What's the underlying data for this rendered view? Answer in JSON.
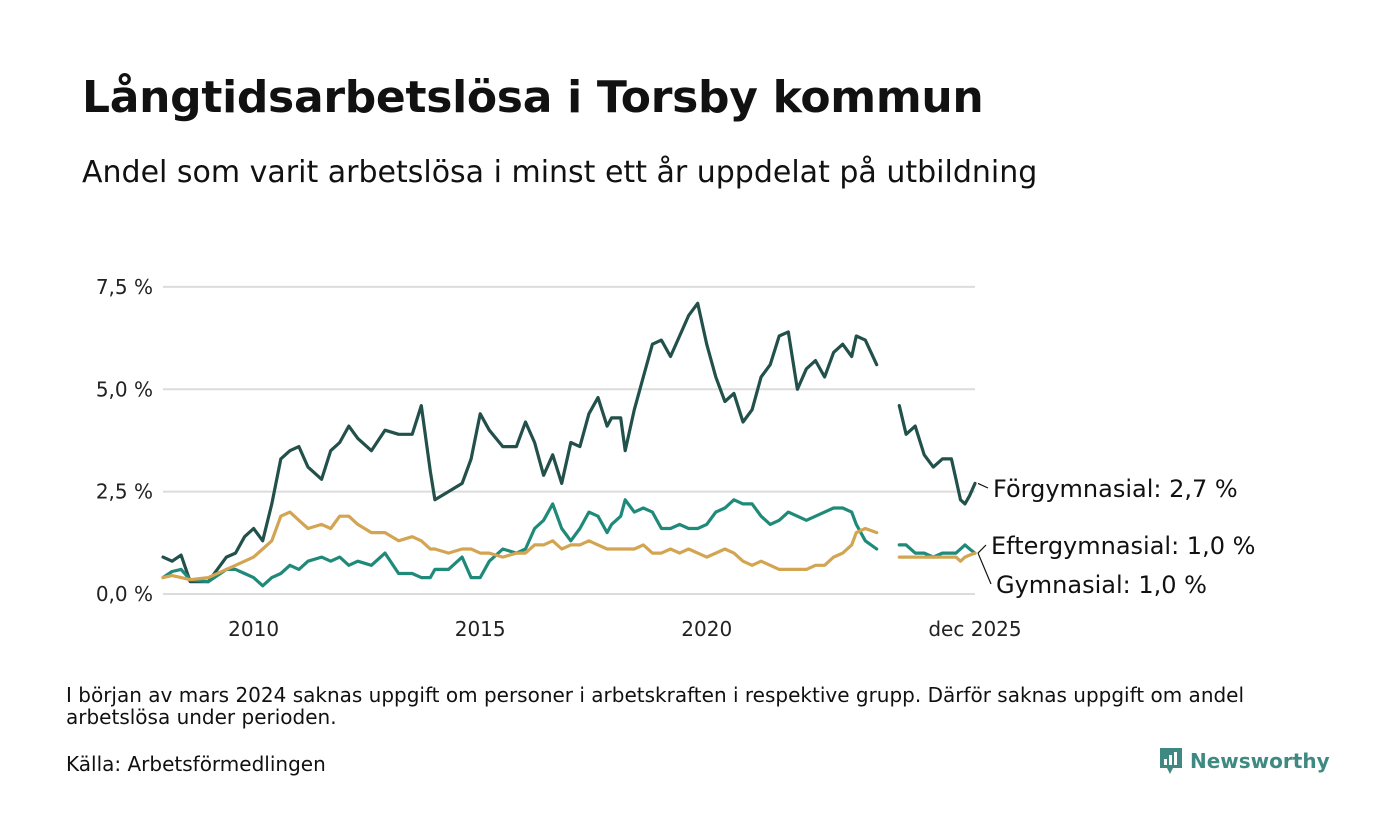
{
  "title": "Långtidsarbetslösa i Torsby kommun",
  "subtitle": "Andel som varit arbetslösa i minst ett år uppdelat på utbildning",
  "note": "I början av mars 2024 saknas uppgift om personer i arbetskraften i respektive grupp. Därför saknas uppgift om andel arbetslösa under perioden.",
  "source": "Källa: Arbetsförmedlingen",
  "brand": "Newsworthy",
  "chart_data": {
    "type": "line",
    "title": "Långtidsarbetslösa i Torsby kommun",
    "xlabel": "",
    "ylabel": "",
    "xlim": [
      2008.0,
      2025.92
    ],
    "ylim": [
      0,
      9.5
    ],
    "yticks": [
      0,
      2.5,
      5.0,
      7.5
    ],
    "ytick_labels": [
      "0,0 %",
      "2,5 %",
      "5,0 %",
      "7,5 %"
    ],
    "xticks": [
      2010,
      2015,
      2020,
      2025.92
    ],
    "xtick_labels": [
      "2010",
      "2015",
      "2020",
      "dec 2025"
    ],
    "gap_years": [
      2023.75,
      2024.25
    ],
    "series": [
      {
        "name": "Förgymnasial",
        "label": "Förgymnasial: 2,7 %",
        "color": "#22504a",
        "points": [
          [
            2008.0,
            0.9
          ],
          [
            2008.2,
            0.8
          ],
          [
            2008.4,
            0.95
          ],
          [
            2008.6,
            0.3
          ],
          [
            2009.0,
            0.3
          ],
          [
            2009.4,
            0.9
          ],
          [
            2009.6,
            1.0
          ],
          [
            2009.8,
            1.4
          ],
          [
            2010.0,
            1.6
          ],
          [
            2010.2,
            1.3
          ],
          [
            2010.4,
            2.2
          ],
          [
            2010.6,
            3.3
          ],
          [
            2010.8,
            3.5
          ],
          [
            2011.0,
            3.6
          ],
          [
            2011.2,
            3.1
          ],
          [
            2011.5,
            2.8
          ],
          [
            2011.7,
            3.5
          ],
          [
            2011.9,
            3.7
          ],
          [
            2012.1,
            4.1
          ],
          [
            2012.3,
            3.8
          ],
          [
            2012.6,
            3.5
          ],
          [
            2012.9,
            4.0
          ],
          [
            2013.2,
            3.9
          ],
          [
            2013.5,
            3.9
          ],
          [
            2013.7,
            4.6
          ],
          [
            2013.9,
            3.0
          ],
          [
            2014.0,
            2.3
          ],
          [
            2014.3,
            2.5
          ],
          [
            2014.6,
            2.7
          ],
          [
            2014.8,
            3.3
          ],
          [
            2015.0,
            4.4
          ],
          [
            2015.2,
            4.0
          ],
          [
            2015.5,
            3.6
          ],
          [
            2015.8,
            3.6
          ],
          [
            2016.0,
            4.2
          ],
          [
            2016.2,
            3.7
          ],
          [
            2016.4,
            2.9
          ],
          [
            2016.6,
            3.4
          ],
          [
            2016.8,
            2.7
          ],
          [
            2017.0,
            3.7
          ],
          [
            2017.2,
            3.6
          ],
          [
            2017.4,
            4.4
          ],
          [
            2017.6,
            4.8
          ],
          [
            2017.8,
            4.1
          ],
          [
            2017.9,
            4.3
          ],
          [
            2018.1,
            4.3
          ],
          [
            2018.2,
            3.5
          ],
          [
            2018.4,
            4.5
          ],
          [
            2018.6,
            5.3
          ],
          [
            2018.8,
            6.1
          ],
          [
            2019.0,
            6.2
          ],
          [
            2019.2,
            5.8
          ],
          [
            2019.4,
            6.3
          ],
          [
            2019.6,
            6.8
          ],
          [
            2019.8,
            7.1
          ],
          [
            2020.0,
            6.1
          ],
          [
            2020.2,
            5.3
          ],
          [
            2020.4,
            4.7
          ],
          [
            2020.6,
            4.9
          ],
          [
            2020.8,
            4.2
          ],
          [
            2021.0,
            4.5
          ],
          [
            2021.2,
            5.3
          ],
          [
            2021.4,
            5.6
          ],
          [
            2021.6,
            6.3
          ],
          [
            2021.8,
            6.4
          ],
          [
            2022.0,
            5.0
          ],
          [
            2022.2,
            5.5
          ],
          [
            2022.4,
            5.7
          ],
          [
            2022.6,
            5.3
          ],
          [
            2022.8,
            5.9
          ],
          [
            2023.0,
            6.1
          ],
          [
            2023.2,
            5.8
          ],
          [
            2023.3,
            6.3
          ],
          [
            2023.5,
            6.2
          ],
          [
            2023.75,
            5.6
          ],
          [
            2024.25,
            4.6
          ],
          [
            2024.4,
            3.9
          ],
          [
            2024.6,
            4.1
          ],
          [
            2024.8,
            3.4
          ],
          [
            2025.0,
            3.1
          ],
          [
            2025.2,
            3.3
          ],
          [
            2025.4,
            3.3
          ],
          [
            2025.5,
            2.8
          ],
          [
            2025.6,
            2.3
          ],
          [
            2025.7,
            2.2
          ],
          [
            2025.8,
            2.4
          ],
          [
            2025.92,
            2.7
          ]
        ]
      },
      {
        "name": "Eftergymnasial",
        "label": "Eftergymnasial: 1,0 %",
        "color": "#1f8a7a",
        "points": [
          [
            2008.0,
            0.4
          ],
          [
            2008.2,
            0.55
          ],
          [
            2008.4,
            0.6
          ],
          [
            2008.6,
            0.35
          ],
          [
            2009.0,
            0.3
          ],
          [
            2009.4,
            0.6
          ],
          [
            2009.6,
            0.6
          ],
          [
            2009.8,
            0.5
          ],
          [
            2010.0,
            0.4
          ],
          [
            2010.2,
            0.2
          ],
          [
            2010.4,
            0.4
          ],
          [
            2010.6,
            0.5
          ],
          [
            2010.8,
            0.7
          ],
          [
            2011.0,
            0.6
          ],
          [
            2011.2,
            0.8
          ],
          [
            2011.5,
            0.9
          ],
          [
            2011.7,
            0.8
          ],
          [
            2011.9,
            0.9
          ],
          [
            2012.1,
            0.7
          ],
          [
            2012.3,
            0.8
          ],
          [
            2012.6,
            0.7
          ],
          [
            2012.9,
            1.0
          ],
          [
            2013.2,
            0.5
          ],
          [
            2013.5,
            0.5
          ],
          [
            2013.7,
            0.4
          ],
          [
            2013.9,
            0.4
          ],
          [
            2014.0,
            0.6
          ],
          [
            2014.3,
            0.6
          ],
          [
            2014.6,
            0.9
          ],
          [
            2014.8,
            0.4
          ],
          [
            2015.0,
            0.4
          ],
          [
            2015.2,
            0.8
          ],
          [
            2015.5,
            1.1
          ],
          [
            2015.8,
            1.0
          ],
          [
            2016.0,
            1.1
          ],
          [
            2016.2,
            1.6
          ],
          [
            2016.4,
            1.8
          ],
          [
            2016.6,
            2.2
          ],
          [
            2016.8,
            1.6
          ],
          [
            2017.0,
            1.3
          ],
          [
            2017.2,
            1.6
          ],
          [
            2017.4,
            2.0
          ],
          [
            2017.6,
            1.9
          ],
          [
            2017.8,
            1.5
          ],
          [
            2017.9,
            1.7
          ],
          [
            2018.1,
            1.9
          ],
          [
            2018.2,
            2.3
          ],
          [
            2018.4,
            2.0
          ],
          [
            2018.6,
            2.1
          ],
          [
            2018.8,
            2.0
          ],
          [
            2019.0,
            1.6
          ],
          [
            2019.2,
            1.6
          ],
          [
            2019.4,
            1.7
          ],
          [
            2019.6,
            1.6
          ],
          [
            2019.8,
            1.6
          ],
          [
            2020.0,
            1.7
          ],
          [
            2020.2,
            2.0
          ],
          [
            2020.4,
            2.1
          ],
          [
            2020.6,
            2.3
          ],
          [
            2020.8,
            2.2
          ],
          [
            2021.0,
            2.2
          ],
          [
            2021.2,
            1.9
          ],
          [
            2021.4,
            1.7
          ],
          [
            2021.6,
            1.8
          ],
          [
            2021.8,
            2.0
          ],
          [
            2022.0,
            1.9
          ],
          [
            2022.2,
            1.8
          ],
          [
            2022.4,
            1.9
          ],
          [
            2022.6,
            2.0
          ],
          [
            2022.8,
            2.1
          ],
          [
            2023.0,
            2.1
          ],
          [
            2023.2,
            2.0
          ],
          [
            2023.3,
            1.7
          ],
          [
            2023.5,
            1.3
          ],
          [
            2023.75,
            1.1
          ],
          [
            2024.25,
            1.2
          ],
          [
            2024.4,
            1.2
          ],
          [
            2024.6,
            1.0
          ],
          [
            2024.8,
            1.0
          ],
          [
            2025.0,
            0.9
          ],
          [
            2025.2,
            1.0
          ],
          [
            2025.4,
            1.0
          ],
          [
            2025.5,
            1.0
          ],
          [
            2025.6,
            1.1
          ],
          [
            2025.7,
            1.2
          ],
          [
            2025.8,
            1.1
          ],
          [
            2025.92,
            1.0
          ]
        ]
      },
      {
        "name": "Gymnasial",
        "label": "Gymnasial: 1,0 %",
        "color": "#d3a552",
        "points": [
          [
            2008.0,
            0.4
          ],
          [
            2008.2,
            0.45
          ],
          [
            2008.4,
            0.4
          ],
          [
            2008.6,
            0.35
          ],
          [
            2009.0,
            0.4
          ],
          [
            2009.4,
            0.6
          ],
          [
            2009.6,
            0.7
          ],
          [
            2009.8,
            0.8
          ],
          [
            2010.0,
            0.9
          ],
          [
            2010.2,
            1.1
          ],
          [
            2010.4,
            1.3
          ],
          [
            2010.6,
            1.9
          ],
          [
            2010.8,
            2.0
          ],
          [
            2011.0,
            1.8
          ],
          [
            2011.2,
            1.6
          ],
          [
            2011.5,
            1.7
          ],
          [
            2011.7,
            1.6
          ],
          [
            2011.9,
            1.9
          ],
          [
            2012.1,
            1.9
          ],
          [
            2012.3,
            1.7
          ],
          [
            2012.6,
            1.5
          ],
          [
            2012.9,
            1.5
          ],
          [
            2013.2,
            1.3
          ],
          [
            2013.5,
            1.4
          ],
          [
            2013.7,
            1.3
          ],
          [
            2013.9,
            1.1
          ],
          [
            2014.0,
            1.1
          ],
          [
            2014.3,
            1.0
          ],
          [
            2014.6,
            1.1
          ],
          [
            2014.8,
            1.1
          ],
          [
            2015.0,
            1.0
          ],
          [
            2015.2,
            1.0
          ],
          [
            2015.5,
            0.9
          ],
          [
            2015.8,
            1.0
          ],
          [
            2016.0,
            1.0
          ],
          [
            2016.2,
            1.2
          ],
          [
            2016.4,
            1.2
          ],
          [
            2016.6,
            1.3
          ],
          [
            2016.8,
            1.1
          ],
          [
            2017.0,
            1.2
          ],
          [
            2017.2,
            1.2
          ],
          [
            2017.4,
            1.3
          ],
          [
            2017.6,
            1.2
          ],
          [
            2017.8,
            1.1
          ],
          [
            2017.9,
            1.1
          ],
          [
            2018.1,
            1.1
          ],
          [
            2018.2,
            1.1
          ],
          [
            2018.4,
            1.1
          ],
          [
            2018.6,
            1.2
          ],
          [
            2018.8,
            1.0
          ],
          [
            2019.0,
            1.0
          ],
          [
            2019.2,
            1.1
          ],
          [
            2019.4,
            1.0
          ],
          [
            2019.6,
            1.1
          ],
          [
            2019.8,
            1.0
          ],
          [
            2020.0,
            0.9
          ],
          [
            2020.2,
            1.0
          ],
          [
            2020.4,
            1.1
          ],
          [
            2020.6,
            1.0
          ],
          [
            2020.8,
            0.8
          ],
          [
            2021.0,
            0.7
          ],
          [
            2021.2,
            0.8
          ],
          [
            2021.4,
            0.7
          ],
          [
            2021.6,
            0.6
          ],
          [
            2021.8,
            0.6
          ],
          [
            2022.0,
            0.6
          ],
          [
            2022.2,
            0.6
          ],
          [
            2022.4,
            0.7
          ],
          [
            2022.6,
            0.7
          ],
          [
            2022.8,
            0.9
          ],
          [
            2023.0,
            1.0
          ],
          [
            2023.2,
            1.2
          ],
          [
            2023.3,
            1.5
          ],
          [
            2023.5,
            1.6
          ],
          [
            2023.75,
            1.5
          ],
          [
            2024.25,
            0.9
          ],
          [
            2024.4,
            0.9
          ],
          [
            2024.6,
            0.9
          ],
          [
            2024.8,
            0.9
          ],
          [
            2025.0,
            0.9
          ],
          [
            2025.2,
            0.9
          ],
          [
            2025.4,
            0.9
          ],
          [
            2025.5,
            0.9
          ],
          [
            2025.6,
            0.8
          ],
          [
            2025.7,
            0.9
          ],
          [
            2025.8,
            0.95
          ],
          [
            2025.92,
            1.0
          ]
        ]
      }
    ]
  }
}
